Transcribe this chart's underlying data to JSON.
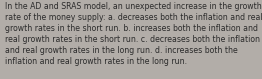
{
  "text": "In the AD and SRAS model, an unexpected increase in the growth\nrate of the money supply: a. decreases both the inflation and real\ngrowth rates in the short run. b. increases both the inflation and\nreal growth rates in the short run. c. decreases both the inflation\nand real growth rates in the long run. d. increases both the\ninflation and real growth rates in the long run.",
  "background_color": "#b2ada8",
  "text_color": "#2b2b2b",
  "font_size": 5.55,
  "fig_width": 2.62,
  "fig_height": 0.79
}
